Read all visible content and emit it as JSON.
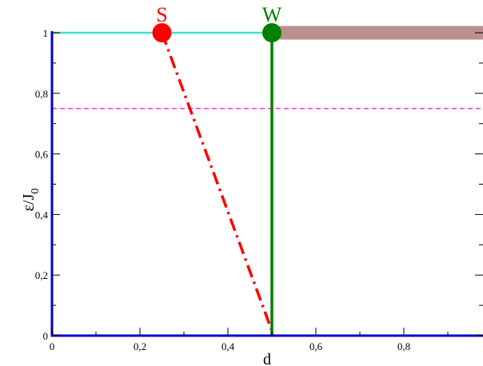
{
  "chart_data": {
    "type": "line",
    "xlabel": "d",
    "ylabel": "ε/J",
    "ylabel_sub": "0",
    "xlim": [
      0,
      1
    ],
    "ylim": [
      0,
      1
    ],
    "x_ticks": [
      {
        "value": 0,
        "label": "0"
      },
      {
        "value": 0.2,
        "label": "0,2"
      },
      {
        "value": 0.4,
        "label": "0,4"
      },
      {
        "value": 0.6,
        "label": "0,6"
      },
      {
        "value": 0.8,
        "label": "0,8"
      }
    ],
    "y_ticks": [
      {
        "value": 0,
        "label": "0"
      },
      {
        "value": 0.2,
        "label": "0,2"
      },
      {
        "value": 0.4,
        "label": "0,4"
      },
      {
        "value": 0.6,
        "label": "0,6"
      },
      {
        "value": 0.8,
        "label": "0,8"
      },
      {
        "value": 1,
        "label": "1"
      }
    ],
    "series": [
      {
        "kind": "cyan_top",
        "color": "#40e0d0",
        "x": [
          0,
          0.5
        ],
        "y": [
          1,
          1
        ]
      },
      {
        "kind": "brown_band",
        "color": "#bc8f8f",
        "x": [
          0.5,
          1.0
        ],
        "y": [
          1,
          1
        ]
      },
      {
        "kind": "red_dashdot",
        "color": "#ff0000",
        "x": [
          0.25,
          0.5
        ],
        "y": [
          1,
          0
        ]
      },
      {
        "kind": "green_vertical",
        "color": "#008000",
        "x": [
          0.5,
          0.5
        ],
        "y": [
          0,
          1
        ]
      },
      {
        "kind": "magenta_dashed",
        "color": "#ff00ff",
        "x": [
          0,
          1.0
        ],
        "y": [
          0.75,
          0.75
        ]
      }
    ],
    "points": [
      {
        "label": "S",
        "x": 0.25,
        "y": 1,
        "color": "#ff0000"
      },
      {
        "label": "W",
        "x": 0.5,
        "y": 1,
        "color": "#008000"
      }
    ],
    "axis_color": "#0000cd"
  }
}
